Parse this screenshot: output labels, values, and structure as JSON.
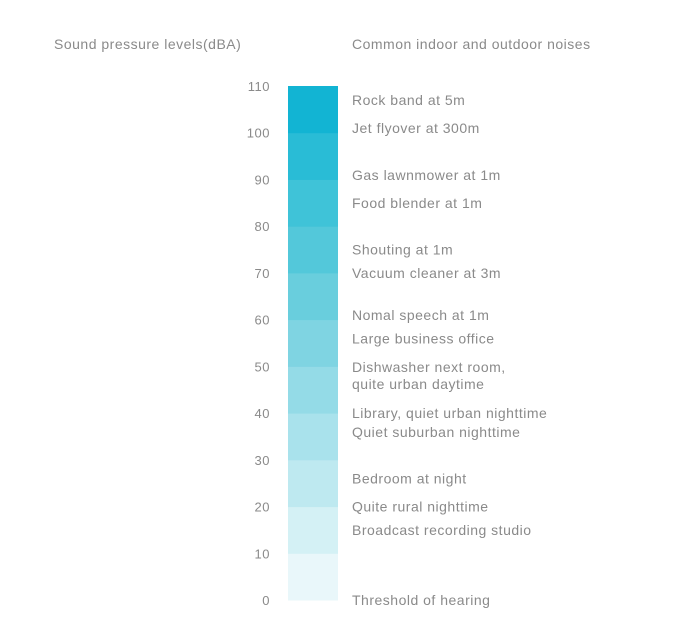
{
  "chart_data": {
    "type": "bar",
    "left_title": "Sound pressure levels(dBA)",
    "right_title": "Common indoor and outdoor noises",
    "y_range": [
      0,
      110
    ],
    "y_ticks": [
      0,
      10,
      20,
      30,
      40,
      50,
      60,
      70,
      80,
      90,
      100,
      110
    ],
    "segments": [
      {
        "from": 0,
        "to": 10,
        "color": "#e9f7fa"
      },
      {
        "from": 10,
        "to": 20,
        "color": "#d4f1f5"
      },
      {
        "from": 20,
        "to": 30,
        "color": "#bee9f0"
      },
      {
        "from": 30,
        "to": 40,
        "color": "#a9e2ec"
      },
      {
        "from": 40,
        "to": 50,
        "color": "#94dbe7"
      },
      {
        "from": 50,
        "to": 60,
        "color": "#7fd4e2"
      },
      {
        "from": 60,
        "to": 70,
        "color": "#69cedd"
      },
      {
        "from": 70,
        "to": 80,
        "color": "#53c8da"
      },
      {
        "from": 80,
        "to": 90,
        "color": "#3fc3d8"
      },
      {
        "from": 90,
        "to": 100,
        "color": "#29bcd6"
      },
      {
        "from": 100,
        "to": 110,
        "color": "#12b4d3"
      }
    ],
    "noises": [
      {
        "label": [
          "Rock band at 5m"
        ],
        "value": 107
      },
      {
        "label": [
          "Jet flyover at 300m"
        ],
        "value": 101
      },
      {
        "label": [
          "Gas lawnmower at 1m"
        ],
        "value": 91
      },
      {
        "label": [
          "Food blender at 1m"
        ],
        "value": 85
      },
      {
        "label": [
          "Shouting at 1m"
        ],
        "value": 75
      },
      {
        "label": [
          "Vacuum cleaner at 3m"
        ],
        "value": 70
      },
      {
        "label": [
          "Nomal speech at 1m"
        ],
        "value": 61
      },
      {
        "label": [
          "Large business office"
        ],
        "value": 56
      },
      {
        "label": [
          "Dishwasher next room,",
          "quite urban daytime"
        ],
        "value": 48
      },
      {
        "label": [
          "Library, quiet urban nighttime"
        ],
        "value": 40
      },
      {
        "label": [
          "Quiet suburban nighttime"
        ],
        "value": 36
      },
      {
        "label": [
          "Bedroom at night"
        ],
        "value": 26
      },
      {
        "label": [
          "Quite rural nighttime"
        ],
        "value": 20
      },
      {
        "label": [
          "Broadcast recording studio"
        ],
        "value": 15
      },
      {
        "label": [
          "Threshold of hearing"
        ],
        "value": 0
      }
    ]
  }
}
